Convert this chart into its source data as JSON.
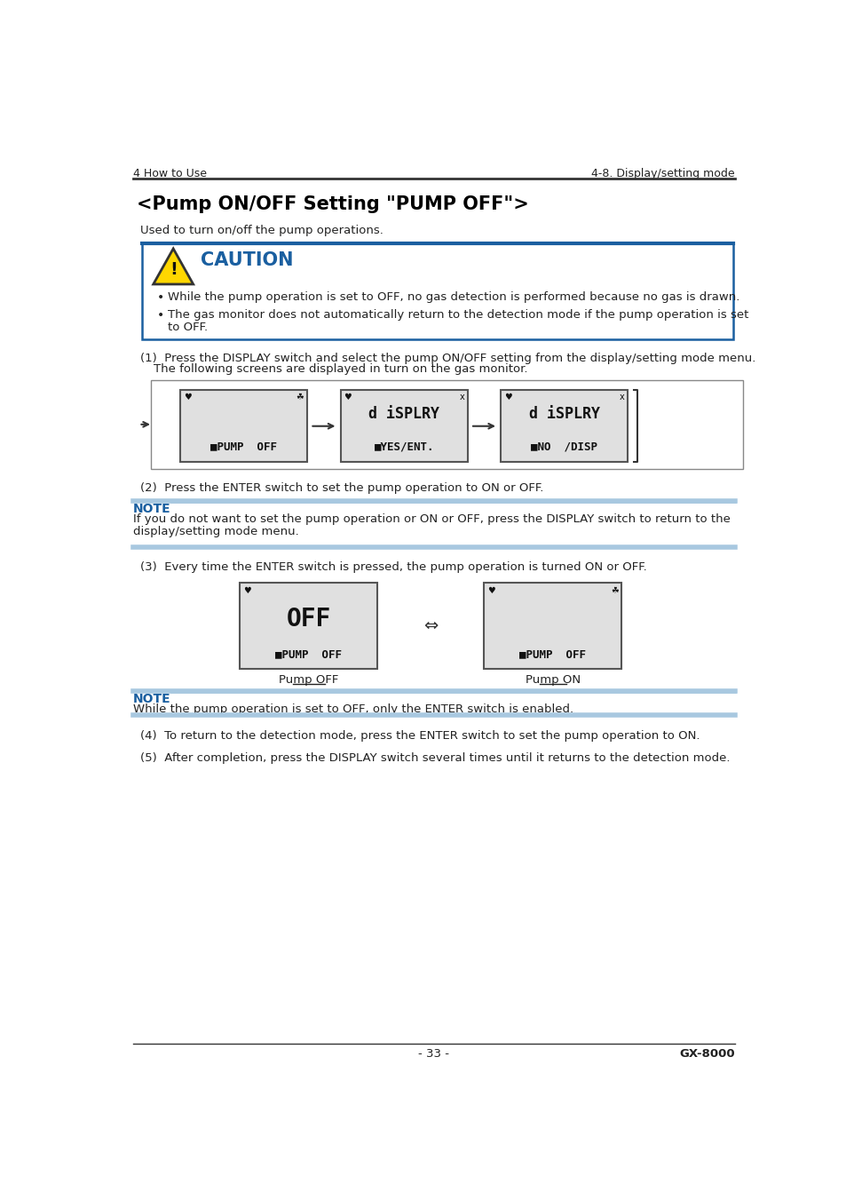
{
  "page_header_left": "4 How to Use",
  "page_header_right": "4-8. Display/setting mode",
  "title": "<Pump ON/OFF Setting \"PUMP OFF\">",
  "intro_text": "Used to turn on/off the pump operations.",
  "caution_title": "CAUTION",
  "caution_bullets": [
    "While the pump operation is set to OFF, no gas detection is performed because no gas is drawn.",
    "The gas monitor does not automatically return to the detection mode if the pump operation is set to OFF."
  ],
  "step1_line1": "(1)  Press the DISPLAY switch and select the pump ON/OFF setting from the display/setting mode menu.",
  "step1_line2": "The following screens are displayed in turn on the gas monitor.",
  "screen2_line1": "d iSPLRY",
  "screen2_line2": "YES/ENT.",
  "screen3_line1": "d iSPLRY",
  "screen3_line2": "NO  /DISP",
  "step2_text": "(2)  Press the ENTER switch to set the pump operation to ON or OFF.",
  "note1_title": "NOTE",
  "note1_line1": "If you do not want to set the pump operation or ON or OFF, press the DISPLAY switch to return to the",
  "note1_line2": "display/setting mode menu.",
  "step3_text": "(3)  Every time the ENTER switch is pressed, the pump operation is turned ON or OFF.",
  "pump_off_label": "Pump OFF",
  "pump_on_label": "Pump ON",
  "note2_title": "NOTE",
  "note2_text": "While the pump operation is set to OFF, only the ENTER switch is enabled.",
  "step4_text": "(4)  To return to the detection mode, press the ENTER switch to set the pump operation to ON.",
  "step5_text": "(5)  After completion, press the DISPLAY switch several times until it returns to the detection mode.",
  "page_footer": "- 33 -",
  "page_footer_right": "GX-8000",
  "bg_color": "#ffffff",
  "caution_border_color": "#1a5fa0",
  "caution_title_color": "#1a5fa0",
  "note_bar_color": "#a8c8e0",
  "note_title_color": "#1a5fa0"
}
